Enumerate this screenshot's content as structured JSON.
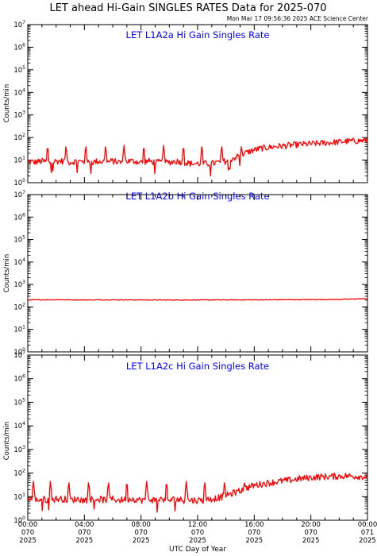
{
  "title": "LET ahead Hi-Gain SINGLES RATES Data for 2025-070",
  "timestamp": "Mon Mar 17 09:56:36 2025 ACE Science Center",
  "xlabel": "UTC Day of Year",
  "colors": {
    "series": "#ff0000",
    "panel_title": "#0000ff",
    "axes": "#000000"
  },
  "chart_data": [
    {
      "type": "line",
      "title": "LET L1A2a Hi Gain Singles Rate",
      "ylabel": "Counts/min",
      "yscale": "log",
      "ylim": [
        1,
        10000000
      ],
      "xlim": [
        0,
        24
      ],
      "x": [
        0,
        0.5,
        1,
        1.5,
        2,
        2.5,
        3,
        3.5,
        4,
        4.5,
        5,
        5.5,
        6,
        6.5,
        7,
        7.5,
        8,
        8.5,
        9,
        9.5,
        10,
        10.5,
        11,
        11.5,
        12,
        12.5,
        13,
        13.5,
        14,
        14.5,
        15,
        15.5,
        16,
        16.5,
        17,
        17.5,
        18,
        18.5,
        19,
        19.5,
        20,
        20.5,
        21,
        21.5,
        22,
        22.5,
        23,
        23.5,
        24
      ],
      "values": [
        9,
        8,
        9,
        8,
        9,
        9,
        8,
        9,
        8,
        8,
        9,
        8,
        9,
        8,
        9,
        9,
        8,
        9,
        8,
        8,
        8,
        9,
        8,
        7,
        7,
        7,
        7,
        8,
        9,
        12,
        16,
        22,
        28,
        33,
        36,
        40,
        42,
        45,
        48,
        50,
        52,
        55,
        58,
        60,
        64,
        68,
        70,
        72,
        74
      ],
      "spike_times": [
        1.4,
        2.7,
        4.1,
        5.5,
        6.8,
        8.2,
        9.6,
        11.0,
        12.3,
        13.7,
        15.1
      ],
      "spike_height": 45
    },
    {
      "type": "line",
      "title": "LET L1A2b Hi Gain Singles Rate",
      "ylabel": "Counts/min",
      "yscale": "log",
      "ylim": [
        1,
        10000000
      ],
      "xlim": [
        0,
        24
      ],
      "x": [
        0,
        2,
        4,
        6,
        8,
        10,
        12,
        14,
        16,
        18,
        20,
        22,
        24
      ],
      "values": [
        205,
        210,
        205,
        208,
        205,
        204,
        205,
        206,
        207,
        210,
        212,
        215,
        235
      ],
      "spike_times": [],
      "spike_height": 0
    },
    {
      "type": "line",
      "title": "LET L1A2c Hi Gain Singles Rate",
      "ylabel": "Counts/min",
      "yscale": "log",
      "ylim": [
        1,
        10000000
      ],
      "xlim": [
        0,
        24
      ],
      "x": [
        0,
        0.5,
        1,
        1.5,
        2,
        2.5,
        3,
        3.5,
        4,
        4.5,
        5,
        5.5,
        6,
        6.5,
        7,
        7.5,
        8,
        8.5,
        9,
        9.5,
        10,
        10.5,
        11,
        11.5,
        12,
        12.5,
        13,
        13.5,
        14,
        14.5,
        15,
        15.5,
        16,
        16.5,
        17,
        17.5,
        18,
        18.5,
        19,
        19.5,
        20,
        20.5,
        21,
        21.5,
        22,
        22.5,
        23,
        23.5,
        24
      ],
      "values": [
        8,
        7,
        8,
        7,
        8,
        8,
        7,
        8,
        7,
        8,
        8,
        7,
        8,
        7,
        8,
        8,
        7,
        8,
        7,
        8,
        7,
        8,
        7,
        7,
        7,
        7,
        8,
        9,
        11,
        14,
        18,
        24,
        30,
        34,
        38,
        42,
        46,
        50,
        55,
        60,
        65,
        68,
        70,
        72,
        74,
        76,
        74,
        72,
        70
      ],
      "spike_times": [
        0.4,
        1.6,
        2.9,
        4.3,
        5.7,
        7.0,
        8.4,
        9.8,
        11.2,
        12.5,
        13.9,
        15.3
      ],
      "spike_height": 45
    }
  ],
  "x_ticks": [
    {
      "line1": "00:00",
      "line2": "070",
      "line3": "2025"
    },
    {
      "line1": "04:00",
      "line2": "070",
      "line3": "2025"
    },
    {
      "line1": "08:00",
      "line2": "070",
      "line3": "2025"
    },
    {
      "line1": "12:00",
      "line2": "070",
      "line3": "2025"
    },
    {
      "line1": "16:00",
      "line2": "070",
      "line3": "2025"
    },
    {
      "line1": "20:00",
      "line2": "070",
      "line3": "2025"
    },
    {
      "line1": "00:00",
      "line2": "071",
      "line3": "2025"
    }
  ]
}
